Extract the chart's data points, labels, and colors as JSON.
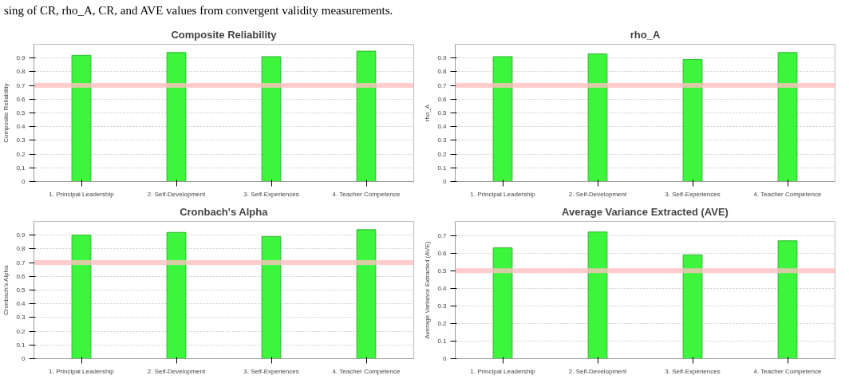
{
  "chart_data": [
    {
      "type": "bar",
      "title": "Composite Reliability",
      "ylabel": "Composite Reliability",
      "annotations": [
        "sing of CR, rho_A, CR, and AVE values from convergent validity measurements."
      ],
      "categories": [
        "1. Principal Leadership",
        "2. Self-Development",
        "3. Self-Experiences",
        "4. Teacher Competence"
      ],
      "values": [
        0.92,
        0.94,
        0.91,
        0.95
      ],
      "color": "#3cf53c",
      "ylim": [
        0,
        1.0
      ],
      "yticks": [
        0,
        0.1,
        0.2,
        0.3,
        0.4,
        0.5,
        0.6,
        0.7,
        0.8,
        0.9
      ],
      "grid": "y",
      "ref_lines": [
        {
          "axis": "y",
          "value": 0.7,
          "color": "#ffc0c0"
        }
      ]
    },
    {
      "type": "bar",
      "title": "rho_A",
      "ylabel": "rho_A",
      "categories": [
        "1. Principal Leadership",
        "2. Self-Development",
        "3. Self-Experiences",
        "4. Teacher Competence"
      ],
      "values": [
        0.91,
        0.93,
        0.89,
        0.94
      ],
      "color": "#3cf53c",
      "ylim": [
        0,
        1.0
      ],
      "yticks": [
        0,
        0.1,
        0.2,
        0.3,
        0.4,
        0.5,
        0.6,
        0.7,
        0.8,
        0.9
      ],
      "grid": "y",
      "ref_lines": [
        {
          "axis": "y",
          "value": 0.7,
          "color": "#ffc0c0"
        }
      ]
    },
    {
      "type": "bar",
      "title": "Cronbach's Alpha",
      "ylabel": "Cronbach's Alpha",
      "categories": [
        "1. Principal Leadership",
        "2. Self-Development",
        "3. Self-Experiences",
        "4. Teacher Competence"
      ],
      "values": [
        0.9,
        0.92,
        0.89,
        0.94
      ],
      "color": "#3cf53c",
      "ylim": [
        0,
        1.0
      ],
      "yticks": [
        0,
        0.1,
        0.2,
        0.3,
        0.4,
        0.5,
        0.6,
        0.7,
        0.8,
        0.9
      ],
      "grid": "y",
      "ref_lines": [
        {
          "axis": "y",
          "value": 0.7,
          "color": "#ffc0c0"
        }
      ]
    },
    {
      "type": "bar",
      "title": "Average Variance Extracted (AVE)",
      "ylabel": "Average Variance Extracted (AVE)",
      "categories": [
        "1. Principal Leadership",
        "2. Self-Development",
        "3. Self-Experiences",
        "4. Teacher Competence"
      ],
      "values": [
        0.63,
        0.72,
        0.59,
        0.67
      ],
      "color": "#3cf53c",
      "ylim": [
        0,
        0.78
      ],
      "yticks": [
        0,
        0.1,
        0.2,
        0.3,
        0.4,
        0.5,
        0.6,
        0.7
      ],
      "grid": "y",
      "ref_lines": [
        {
          "axis": "y",
          "value": 0.5,
          "color": "#ffc0c0"
        }
      ]
    }
  ]
}
